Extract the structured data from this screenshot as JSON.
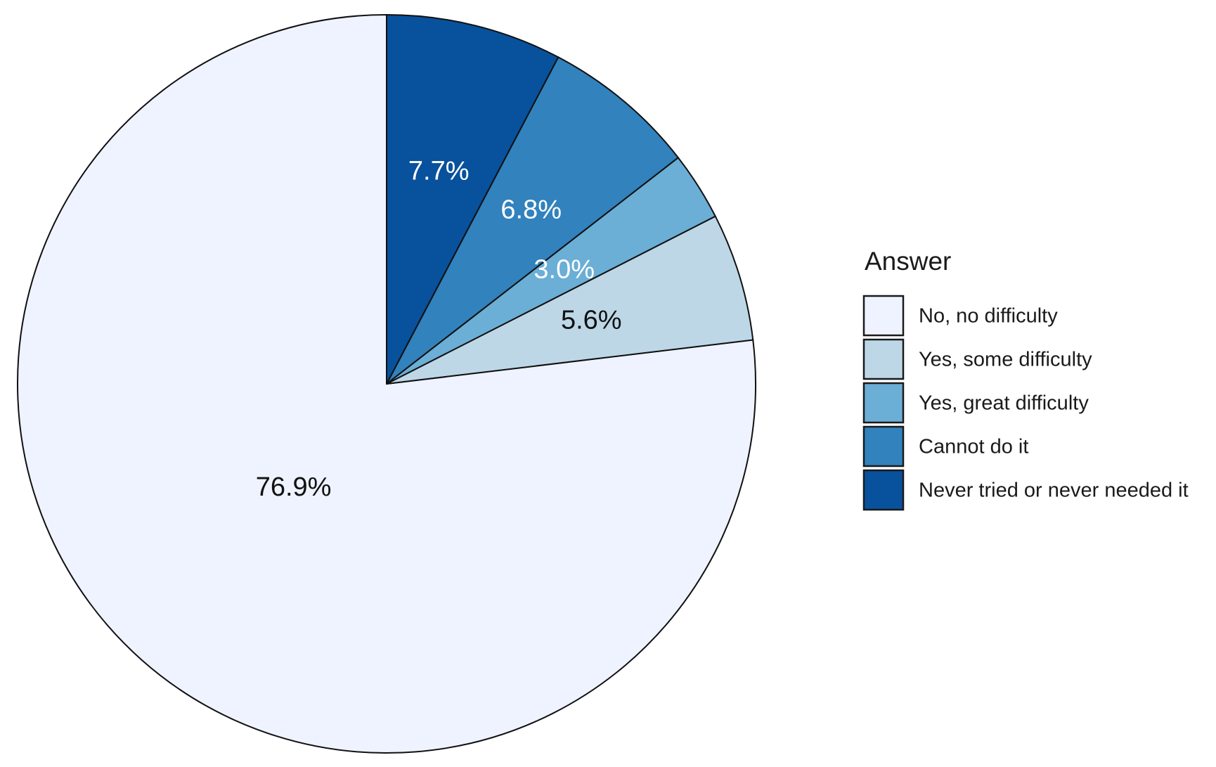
{
  "chart_data": {
    "type": "pie",
    "legend_title": "Answer",
    "legend_position": "right",
    "start_angle": "12 o'clock",
    "direction": "counterclockwise",
    "slices": [
      {
        "label": "No, no difficulty",
        "value": 76.9,
        "display": "76.9%",
        "color": "#eff3ff",
        "label_color": "#111111"
      },
      {
        "label": "Yes, some difficulty",
        "value": 5.6,
        "display": "5.6%",
        "color": "#bdd7e7",
        "label_color": "#111111"
      },
      {
        "label": "Yes, great difficulty",
        "value": 3.0,
        "display": "3.0%",
        "color": "#6baed6",
        "label_color": "#ffffff"
      },
      {
        "label": "Cannot do it",
        "value": 6.8,
        "display": "6.8%",
        "color": "#3182bd",
        "label_color": "#ffffff"
      },
      {
        "label": "Never tried or never needed it",
        "value": 7.7,
        "display": "7.7%",
        "color": "#08519c",
        "label_color": "#ffffff"
      }
    ]
  }
}
